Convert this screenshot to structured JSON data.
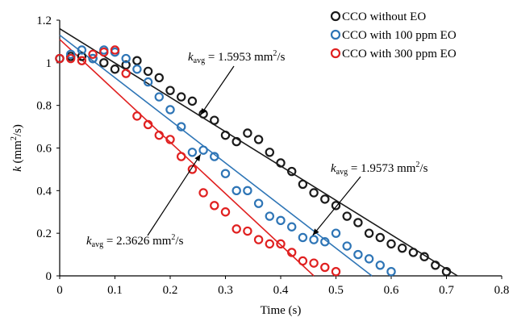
{
  "chart_data": {
    "type": "scatter",
    "xlabel": "Time (s)",
    "ylabel_main": "k",
    "ylabel_unit": " (mm",
    "ylabel_sup": "2",
    "ylabel_end": "/s)",
    "xlim": [
      0,
      0.8
    ],
    "ylim": [
      0,
      1.2
    ],
    "xticks": [
      0,
      0.1,
      0.2,
      0.3,
      0.4,
      0.5,
      0.6,
      0.7,
      0.8
    ],
    "xtick_labels": [
      "0",
      "0.1",
      "0.2",
      "0.3",
      "0.4",
      "0.5",
      "0.6",
      "0.7",
      "0.8"
    ],
    "yticks": [
      0,
      0.2,
      0.4,
      0.6,
      0.8,
      1.0,
      1.2
    ],
    "ytick_labels": [
      "0",
      "0.2",
      "0.4",
      "0.6",
      "0.8",
      "1",
      "1.2"
    ],
    "grid": false,
    "legend_position": "top-right",
    "series": [
      {
        "name": "CCO without EO",
        "color": "#1a1a1a",
        "fit": [
          [
            0,
            1.16
          ],
          [
            0.72,
            0
          ]
        ],
        "x": [
          0,
          0.02,
          0.04,
          0.06,
          0.08,
          0.1,
          0.12,
          0.14,
          0.16,
          0.18,
          0.2,
          0.22,
          0.24,
          0.26,
          0.28,
          0.3,
          0.32,
          0.34,
          0.36,
          0.38,
          0.4,
          0.42,
          0.44,
          0.46,
          0.48,
          0.5,
          0.52,
          0.54,
          0.56,
          0.58,
          0.6,
          0.62,
          0.64,
          0.66,
          0.68,
          0.7
        ],
        "y": [
          1.02,
          1.03,
          1.03,
          1.02,
          1.0,
          0.97,
          0.99,
          1.01,
          0.96,
          0.93,
          0.87,
          0.84,
          0.82,
          0.76,
          0.73,
          0.66,
          0.63,
          0.67,
          0.64,
          0.58,
          0.53,
          0.49,
          0.43,
          0.39,
          0.36,
          0.33,
          0.28,
          0.25,
          0.2,
          0.18,
          0.15,
          0.13,
          0.11,
          0.09,
          0.05,
          0.02
        ]
      },
      {
        "name": "CCO with 100 ppm EO",
        "color": "#2e75b6",
        "fit": [
          [
            0,
            1.13
          ],
          [
            0.565,
            0
          ]
        ],
        "x": [
          0,
          0.02,
          0.04,
          0.06,
          0.08,
          0.1,
          0.12,
          0.14,
          0.16,
          0.18,
          0.2,
          0.22,
          0.24,
          0.26,
          0.28,
          0.3,
          0.32,
          0.34,
          0.36,
          0.38,
          0.4,
          0.42,
          0.44,
          0.46,
          0.48,
          0.5,
          0.52,
          0.54,
          0.56,
          0.58,
          0.6
        ],
        "y": [
          1.02,
          1.04,
          1.06,
          1.02,
          1.06,
          1.05,
          1.02,
          0.97,
          0.91,
          0.84,
          0.78,
          0.7,
          0.58,
          0.59,
          0.56,
          0.48,
          0.4,
          0.4,
          0.34,
          0.28,
          0.26,
          0.23,
          0.18,
          0.17,
          0.16,
          0.2,
          0.14,
          0.1,
          0.08,
          0.05,
          0.02
        ]
      },
      {
        "name": "CCO with 300 ppm EO",
        "color": "#e02020",
        "fit": [
          [
            0,
            1.11
          ],
          [
            0.46,
            0
          ]
        ],
        "x": [
          0,
          0.02,
          0.04,
          0.06,
          0.08,
          0.1,
          0.12,
          0.14,
          0.16,
          0.18,
          0.2,
          0.22,
          0.24,
          0.26,
          0.28,
          0.3,
          0.32,
          0.34,
          0.36,
          0.38,
          0.4,
          0.42,
          0.44,
          0.46,
          0.48,
          0.5
        ],
        "y": [
          1.02,
          1.02,
          1.01,
          1.04,
          1.05,
          1.06,
          0.95,
          0.75,
          0.71,
          0.66,
          0.64,
          0.56,
          0.5,
          0.39,
          0.33,
          0.3,
          0.22,
          0.21,
          0.17,
          0.15,
          0.15,
          0.11,
          0.07,
          0.06,
          0.04,
          0.02
        ]
      }
    ],
    "annotations": [
      {
        "label": "k",
        "sub": "avg",
        "value": " = 1.5953 mm",
        "sup": "2",
        "unit": "/s",
        "anchor_x": 0.255,
        "anchor_y": 0.755
      },
      {
        "label": "k",
        "sub": "avg",
        "value": " = 1.9573 mm",
        "sup": "2",
        "unit": "/s",
        "anchor_x": 0.458,
        "anchor_y": 0.19
      },
      {
        "label": "k",
        "sub": "avg",
        "value": " = 2.3626 mm",
        "sup": "2",
        "unit": "/s",
        "anchor_x": 0.255,
        "anchor_y": 0.57
      }
    ]
  }
}
